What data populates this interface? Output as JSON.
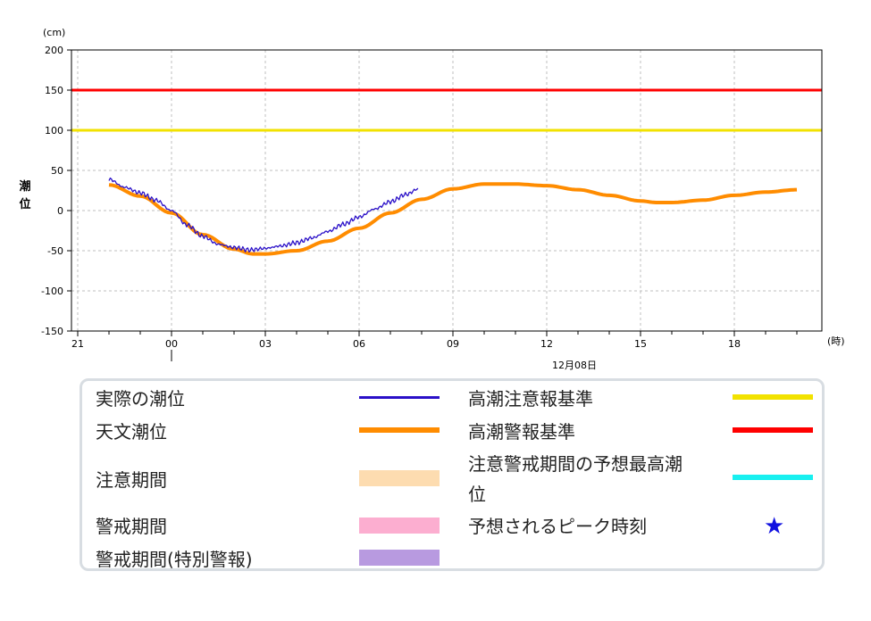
{
  "chart_data": {
    "type": "line",
    "y_unit": "(cm)",
    "x_unit": "(時)",
    "ylabel": "潮位",
    "ylim": [
      -150,
      200
    ],
    "yticks": [
      200,
      150,
      100,
      50,
      0,
      -50,
      -100,
      -150
    ],
    "x_tick_labels": [
      "21",
      "00",
      "03",
      "06",
      "09",
      "12",
      "15",
      "18"
    ],
    "date_label": "12月08日",
    "grid": true,
    "thresholds": [
      {
        "name": "高潮警報基準",
        "value": 150,
        "color": "#ff0000"
      },
      {
        "name": "高潮注意報基準",
        "value": 100,
        "color": "#f2e200"
      }
    ],
    "series": [
      {
        "name": "天文潮位",
        "color": "#ff8c00",
        "x_hours": [
          -2,
          -1,
          0,
          1,
          2,
          2.6,
          3,
          4,
          5,
          6,
          7,
          8,
          9,
          10,
          11,
          12,
          13,
          14,
          15,
          15.5,
          16,
          17,
          18,
          19,
          20
        ],
        "values": [
          32,
          18,
          -3,
          -30,
          -48,
          -54,
          -54,
          -50,
          -38,
          -22,
          -3,
          14,
          27,
          33,
          33,
          31,
          26,
          19,
          12,
          10,
          10,
          13,
          19,
          23,
          26
        ]
      },
      {
        "name": "実際の潮位",
        "color": "#2a10c8",
        "x_hours": [
          -2,
          -1.5,
          -1,
          -0.5,
          0,
          0.5,
          1,
          1.5,
          2,
          2.5,
          3,
          3.5,
          4,
          4.5,
          5,
          5.5,
          6,
          6.5,
          7,
          7.5,
          7.9
        ],
        "values": [
          39,
          29,
          22,
          13,
          0,
          -18,
          -32,
          -42,
          -46,
          -49,
          -47,
          -44,
          -40,
          -34,
          -26,
          -17,
          -8,
          2,
          11,
          20,
          27
        ]
      }
    ]
  },
  "legend": {
    "actual": "実際の潮位",
    "astro": "天文潮位",
    "caution_period": "注意期間",
    "warning_period": "警戒期間",
    "warning_special": "警戒期間(特別警報)",
    "advisory_std": "高潮注意報基準",
    "warning_std": "高潮警報基準",
    "peak_forecast_line1": "注意警戒期間の予想最高潮",
    "peak_forecast_line2": "位",
    "peak_time": "予想されるピーク時刻"
  },
  "colors": {
    "actual": "#2a10c8",
    "astro": "#ff8c00",
    "caution_period": "#fddcb0",
    "warning_period": "#fcaed0",
    "warning_special": "#b89ae0",
    "advisory_std": "#f2e200",
    "warning_std": "#ff0000",
    "peak_forecast": "#18f0f0",
    "peak_star": "#1010e0"
  }
}
